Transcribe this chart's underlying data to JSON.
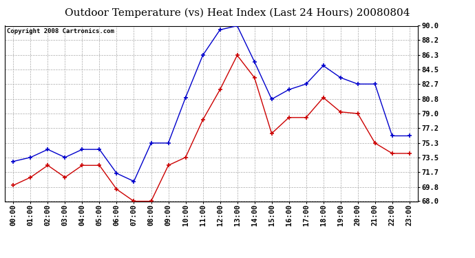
{
  "title": "Outdoor Temperature (vs) Heat Index (Last 24 Hours) 20080804",
  "copyright": "Copyright 2008 Cartronics.com",
  "x_labels": [
    "00:00",
    "01:00",
    "02:00",
    "03:00",
    "04:00",
    "05:00",
    "06:00",
    "07:00",
    "08:00",
    "09:00",
    "10:00",
    "11:00",
    "12:00",
    "13:00",
    "14:00",
    "15:00",
    "16:00",
    "17:00",
    "18:00",
    "19:00",
    "20:00",
    "21:00",
    "22:00",
    "23:00"
  ],
  "blue_data": [
    73.0,
    73.5,
    74.5,
    73.5,
    74.5,
    74.5,
    71.5,
    70.5,
    75.3,
    75.3,
    81.0,
    86.3,
    89.5,
    90.0,
    85.5,
    80.8,
    82.0,
    82.7,
    85.0,
    83.5,
    82.7,
    82.7,
    76.2,
    76.2
  ],
  "red_data": [
    70.0,
    71.0,
    72.5,
    71.0,
    72.5,
    72.5,
    69.5,
    68.0,
    68.0,
    72.5,
    73.5,
    78.2,
    82.0,
    86.3,
    83.5,
    76.5,
    78.5,
    78.5,
    81.0,
    79.2,
    79.0,
    75.3,
    74.0,
    74.0
  ],
  "blue_color": "#0000cc",
  "red_color": "#cc0000",
  "bg_color": "#ffffff",
  "grid_color": "#aaaaaa",
  "ylim": [
    68.0,
    90.0
  ],
  "yticks": [
    68.0,
    69.8,
    71.7,
    73.5,
    75.3,
    77.2,
    79.0,
    80.8,
    82.7,
    84.5,
    86.3,
    88.2,
    90.0
  ],
  "title_fontsize": 11,
  "copyright_fontsize": 6.5,
  "tick_fontsize": 7.5
}
